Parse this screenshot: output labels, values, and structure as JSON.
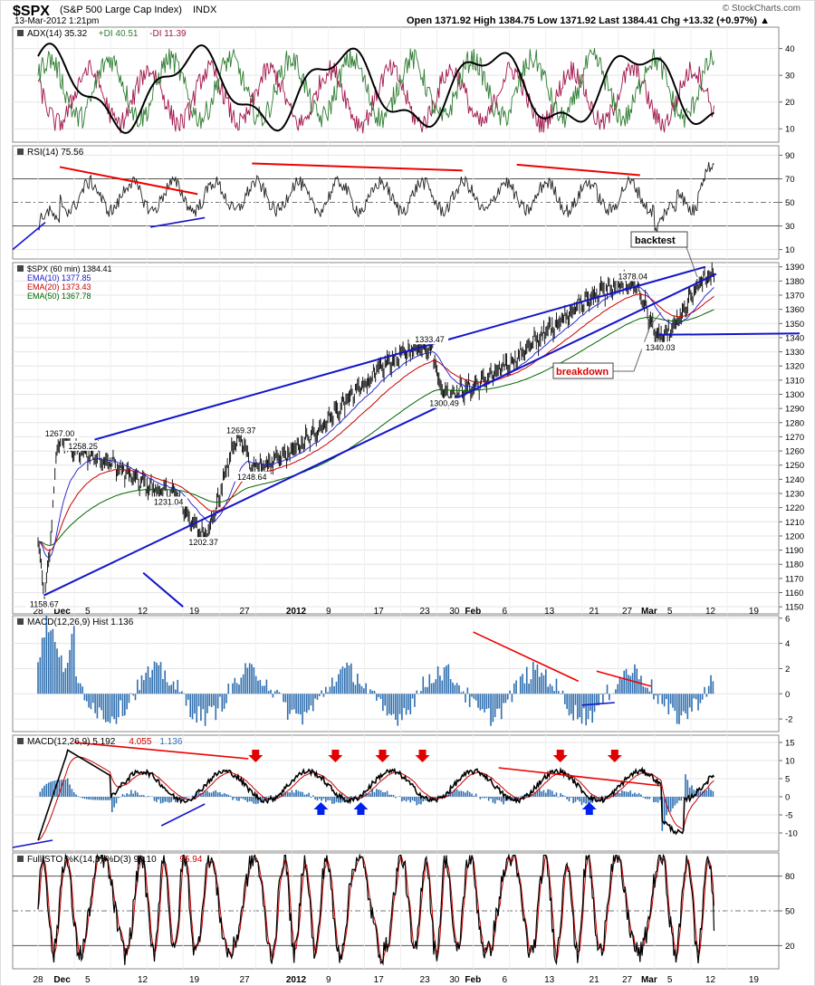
{
  "header": {
    "symbol": "$SPX",
    "name": "(S&P 500 Large Cap Index)",
    "exchange": "INDX",
    "date": "13-Mar-2012 1:21pm",
    "quote": "Open 1371.92  High 1384.75  Low 1371.92  Last 1384.41  Chg +13.32 (+0.97%) ▲",
    "credit": "© StockCharts.com"
  },
  "x_labels": [
    "28",
    "Dec",
    "5",
    "12",
    "19",
    "27",
    "2012",
    "9",
    "17",
    "23",
    "30",
    "Feb",
    "6",
    "13",
    "21",
    "27",
    "Mar",
    "5",
    "12",
    "19"
  ],
  "annotations": {
    "backtest": "backtest",
    "breakdown": "breakdown"
  },
  "colors": {
    "price": "#000000",
    "ema10": "#1a1acc",
    "ema20": "#cc0000",
    "ema50": "#006600",
    "trendline": "#1414cc",
    "divergence": "#ee0000",
    "adx_plus": "#2e7d32",
    "adx_minus": "#a0144a",
    "macd_hist": "#2f6fb0",
    "arrow_red": "#e00000",
    "arrow_blue": "#0020ee"
  },
  "chart_data": [
    {
      "type": "line",
      "panel": "ADX",
      "legend": [
        "ADX(14) 35.32",
        "+DI 40.51",
        "-DI 11.39"
      ],
      "ylim": [
        5,
        48
      ],
      "yticks": [
        40,
        30,
        20,
        10
      ],
      "series": [
        {
          "name": "ADX(14)",
          "last": 35.32
        },
        {
          "name": "+DI",
          "last": 40.51
        },
        {
          "name": "-DI",
          "last": 11.39
        }
      ]
    },
    {
      "type": "line",
      "panel": "RSI",
      "legend": [
        "RSI(14) 75.56"
      ],
      "ylim": [
        2,
        98
      ],
      "yticks": [
        90,
        70,
        50,
        30,
        10
      ],
      "series": [
        {
          "name": "RSI(14)",
          "last": 75.56
        }
      ]
    },
    {
      "type": "line",
      "panel": "Price",
      "legend": [
        "$SPX (60 min) 1384.41",
        "EMA(10) 1377.85",
        "EMA(20) 1373.43",
        "EMA(50) 1367.78"
      ],
      "ylim": [
        1145,
        1393
      ],
      "yticks": [
        1390,
        1380,
        1370,
        1360,
        1350,
        1340,
        1330,
        1320,
        1310,
        1300,
        1290,
        1280,
        1270,
        1260,
        1250,
        1240,
        1230,
        1220,
        1210,
        1200,
        1190,
        1180,
        1170,
        1160,
        1150
      ],
      "key_points": [
        {
          "x": 0.085,
          "y": 1158.67,
          "label": "1158.67"
        },
        {
          "x": 0.3,
          "y": 1267.0,
          "label": "1267.00"
        },
        {
          "x": 0.62,
          "y": 1258.25,
          "label": "1258.25"
        },
        {
          "x": 1.8,
          "y": 1231.04,
          "label": "1231.04"
        },
        {
          "x": 2.28,
          "y": 1202.37,
          "label": "1202.37"
        },
        {
          "x": 2.8,
          "y": 1269.37,
          "label": "1269.37"
        },
        {
          "x": 2.95,
          "y": 1248.64,
          "label": "1248.64"
        },
        {
          "x": 5.4,
          "y": 1333.47,
          "label": "1333.47"
        },
        {
          "x": 5.6,
          "y": 1300.49,
          "label": "1300.49"
        },
        {
          "x": 8.2,
          "y": 1378.04,
          "label": "1378.04"
        },
        {
          "x": 8.58,
          "y": 1340.03,
          "label": "1340.03"
        },
        {
          "x": 9.3,
          "y": 1384.41
        }
      ],
      "series": [
        {
          "name": "$SPX (60 min)",
          "last": 1384.41
        },
        {
          "name": "EMA(10)",
          "last": 1377.85
        },
        {
          "name": "EMA(20)",
          "last": 1373.43
        },
        {
          "name": "EMA(50)",
          "last": 1367.78
        }
      ]
    },
    {
      "type": "bar",
      "panel": "MACD Histogram",
      "legend": [
        "MACD(12,26,9) Hist 1.136"
      ],
      "ylim": [
        -3,
        6.2
      ],
      "yticks": [
        6,
        4,
        2,
        0,
        -2
      ],
      "series": [
        {
          "name": "Hist",
          "last": 1.136
        }
      ]
    },
    {
      "type": "line",
      "panel": "MACD",
      "legend": [
        "MACD(12,26,9) 5.192",
        "4.055",
        "1.136"
      ],
      "ylim": [
        -15,
        17
      ],
      "yticks": [
        15,
        10,
        5,
        0,
        -5,
        -10
      ],
      "series": [
        {
          "name": "MACD(12,26,9)",
          "last": 5.192
        },
        {
          "name": "Signal",
          "last": 4.055
        },
        {
          "name": "Hist",
          "last": 1.136
        }
      ]
    },
    {
      "type": "line",
      "panel": "Full STO",
      "legend": [
        "Full STO %K(14,3) %D(3) 98.10",
        "95.94"
      ],
      "ylim": [
        0,
        100
      ],
      "yticks": [
        80,
        50,
        20
      ],
      "series": [
        {
          "name": "%K(14,3)",
          "last": 98.1
        },
        {
          "name": "%D(3)",
          "last": 95.94
        }
      ]
    }
  ]
}
